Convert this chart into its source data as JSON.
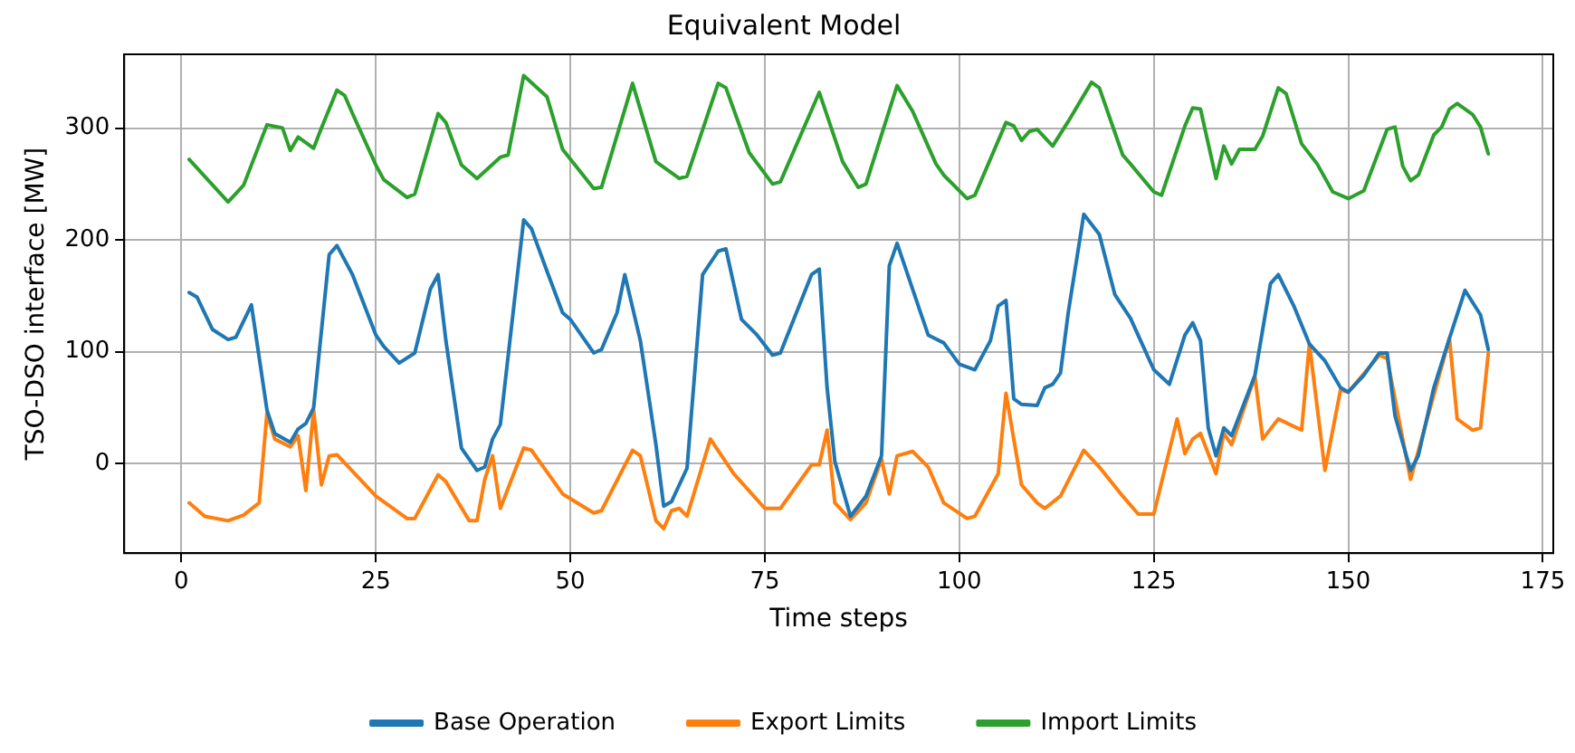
{
  "chart_data": {
    "type": "line",
    "title": "Equivalent Model",
    "xlabel": "Time steps",
    "ylabel": "TSO-DSO interface [MW]",
    "xlim": [
      -7.35,
      176.35
    ],
    "xticks": [
      0,
      25,
      50,
      75,
      100,
      125,
      150,
      175
    ],
    "ylim": [
      -80,
      366
    ],
    "yticks": [
      0,
      100,
      200,
      300
    ],
    "grid": true,
    "legend": "bottom",
    "marker": "none",
    "line_style": "solid",
    "series": [
      {
        "name": "Base Operation",
        "color": "#1f77b4",
        "x": [
          1,
          2,
          4,
          6,
          7,
          9,
          11,
          12,
          14,
          15,
          16,
          17,
          19,
          20,
          22,
          25,
          26,
          28,
          30,
          32,
          33,
          34,
          36,
          38,
          39,
          40,
          41,
          44,
          45,
          47,
          49,
          50,
          53,
          54,
          56,
          57,
          59,
          61,
          62,
          63,
          65,
          67,
          69,
          70,
          72,
          74,
          76,
          77,
          81,
          82,
          83,
          84,
          86,
          88,
          90,
          91,
          92,
          94,
          96,
          98,
          100,
          102,
          104,
          105,
          106,
          107,
          108,
          110,
          111,
          112,
          113,
          114,
          116,
          118,
          120,
          122,
          125,
          127,
          129,
          130,
          131,
          132,
          133,
          134,
          135,
          138,
          140,
          141,
          143,
          145,
          147,
          149,
          150,
          152,
          154,
          155,
          156,
          158,
          159,
          161,
          163,
          165,
          167,
          168
        ],
        "values": [
          153,
          149,
          120,
          111,
          113,
          142,
          48,
          27,
          19,
          31,
          36,
          50,
          187,
          195,
          169,
          115,
          105,
          90,
          99,
          156,
          169,
          110,
          14,
          -6,
          -3,
          22,
          35,
          218,
          210,
          172,
          135,
          129,
          99,
          102,
          135,
          169,
          110,
          17,
          -38,
          -34,
          -4,
          169,
          190,
          192,
          129,
          115,
          97,
          99,
          169,
          174,
          68,
          2,
          -47,
          -29,
          7,
          177,
          197,
          156,
          115,
          108,
          89,
          84,
          110,
          141,
          146,
          58,
          53,
          52,
          68,
          71,
          81,
          135,
          223,
          205,
          151,
          130,
          84,
          71,
          115,
          126,
          110,
          32,
          7,
          32,
          25,
          79,
          161,
          169,
          141,
          107,
          92,
          68,
          64,
          79,
          99,
          99,
          43,
          -6,
          7,
          68,
          112,
          155,
          133,
          102
        ]
      },
      {
        "name": "Export Limits",
        "color": "#ff7f0e",
        "x": [
          1,
          3,
          6,
          8,
          10,
          11,
          12,
          14,
          15,
          16,
          17,
          18,
          19,
          20,
          25,
          29,
          30,
          33,
          34,
          37,
          38,
          39,
          40,
          41,
          44,
          45,
          49,
          53,
          54,
          58,
          59,
          61,
          62,
          63,
          64,
          65,
          68,
          71,
          75,
          77,
          81,
          82,
          83,
          84,
          86,
          88,
          90,
          91,
          92,
          94,
          96,
          98,
          101,
          102,
          105,
          106,
          108,
          110,
          111,
          113,
          116,
          118,
          121,
          123,
          125,
          128,
          129,
          130,
          131,
          133,
          134,
          135,
          138,
          139,
          141,
          144,
          145,
          147,
          149,
          150,
          154,
          155,
          158,
          163,
          164,
          166,
          167,
          168
        ],
        "values": [
          -35,
          -47,
          -51,
          -46,
          -35,
          45,
          22,
          15,
          25,
          -24,
          48,
          -19,
          7,
          8,
          -29,
          -49,
          -49,
          -10,
          -16,
          -51,
          -51,
          -14,
          7,
          -40,
          14,
          12,
          -27,
          -44,
          -42,
          12,
          7,
          -51,
          -58,
          -42,
          -40,
          -47,
          22,
          -9,
          -40,
          -40,
          -1,
          -1,
          30,
          -35,
          -50,
          -35,
          4,
          -27,
          7,
          11,
          -3,
          -35,
          -49,
          -47,
          -9,
          63,
          -19,
          -35,
          -40,
          -29,
          12,
          -3,
          -29,
          -45,
          -45,
          40,
          9,
          22,
          27,
          -9,
          27,
          17,
          78,
          22,
          40,
          30,
          107,
          -6,
          66,
          64,
          97,
          94,
          -14,
          112,
          40,
          30,
          32,
          99
        ]
      },
      {
        "name": "Import Limits",
        "color": "#2ca02c",
        "x": [
          1,
          6,
          8,
          11,
          13,
          14,
          15,
          17,
          18,
          20,
          21,
          22,
          25,
          26,
          29,
          30,
          33,
          34,
          36,
          38,
          41,
          42,
          44,
          47,
          49,
          53,
          54,
          58,
          61,
          64,
          65,
          69,
          70,
          73,
          76,
          77,
          82,
          85,
          87,
          88,
          92,
          94,
          97,
          98,
          101,
          102,
          106,
          107,
          108,
          109,
          110,
          112,
          114,
          117,
          118,
          121,
          122,
          125,
          126,
          129,
          130,
          131,
          133,
          134,
          135,
          136,
          138,
          139,
          141,
          142,
          144,
          146,
          148,
          150,
          152,
          155,
          156,
          157,
          158,
          159,
          161,
          162,
          163,
          164,
          166,
          167,
          168
        ],
        "values": [
          272,
          234,
          249,
          303,
          300,
          280,
          292,
          282,
          300,
          334,
          329,
          313,
          267,
          254,
          238,
          241,
          313,
          305,
          267,
          255,
          274,
          276,
          347,
          328,
          281,
          246,
          247,
          340,
          270,
          255,
          257,
          340,
          336,
          278,
          250,
          252,
          332,
          270,
          247,
          250,
          338,
          315,
          268,
          258,
          237,
          240,
          305,
          302,
          289,
          297,
          299,
          284,
          306,
          341,
          336,
          276,
          268,
          243,
          240,
          302,
          318,
          317,
          255,
          284,
          268,
          281,
          281,
          293,
          336,
          331,
          286,
          268,
          243,
          237,
          244,
          299,
          301,
          266,
          253,
          258,
          294,
          301,
          317,
          322,
          312,
          301,
          277
        ]
      }
    ]
  }
}
